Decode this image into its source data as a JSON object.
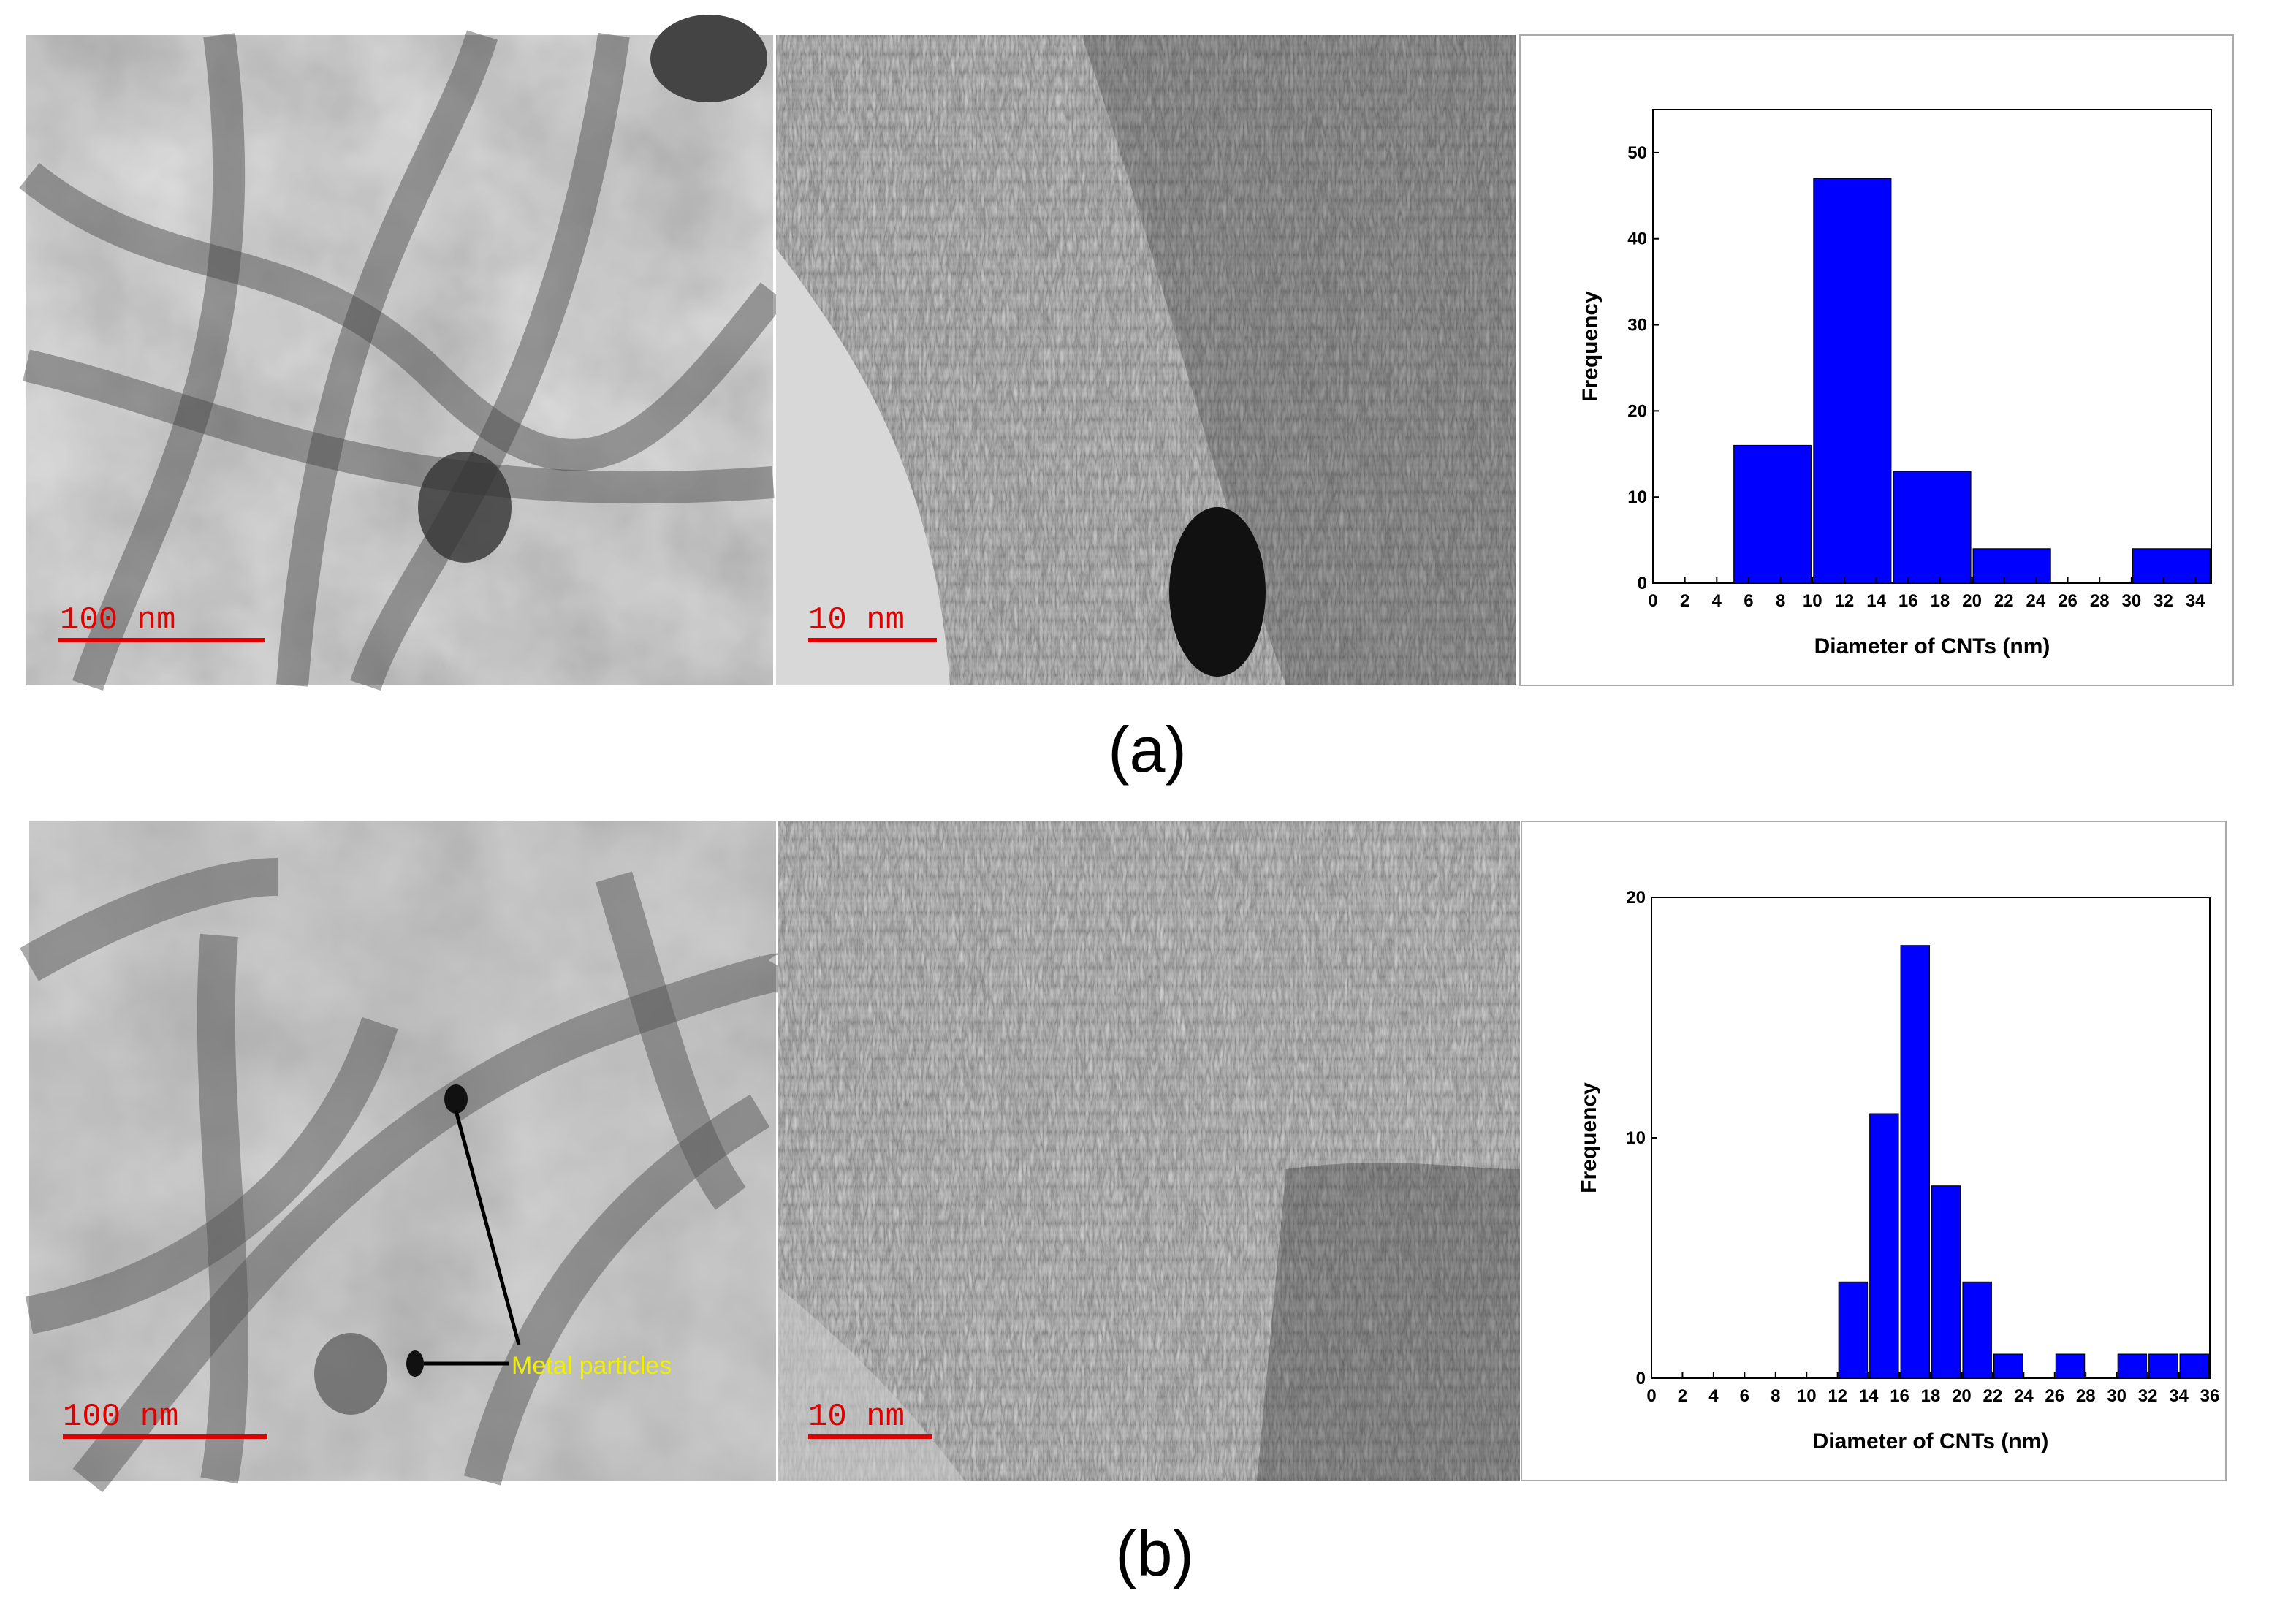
{
  "figure": {
    "panels": [
      {
        "label": "(a)",
        "scale_bars": [
          "100 nm",
          "10 nm"
        ]
      },
      {
        "label": "(b)",
        "scale_bars": [
          "100 nm",
          "10 nm"
        ],
        "annotation": "Metal particles"
      }
    ]
  },
  "chart_data": [
    {
      "type": "histogram",
      "xlabel": "Diameter of CNTs (nm)",
      "ylabel": "Frequency",
      "bins": [
        5,
        10,
        15,
        20,
        25,
        30,
        35
      ],
      "values": [
        16,
        47,
        13,
        4,
        0,
        4
      ],
      "color": "#0000ff",
      "xlim": [
        0,
        35
      ],
      "ylim": [
        0,
        55
      ],
      "xticks": [
        0,
        2,
        4,
        6,
        8,
        10,
        12,
        14,
        16,
        18,
        20,
        22,
        24,
        26,
        28,
        30,
        32,
        34
      ],
      "yticks": [
        0,
        10,
        20,
        30,
        40,
        50
      ]
    },
    {
      "type": "histogram",
      "xlabel": "Diameter of CNTs (nm)",
      "ylabel": "Frequency",
      "bins": [
        12,
        14,
        16,
        18,
        20,
        22,
        24,
        26,
        28,
        30,
        32,
        34,
        36
      ],
      "values": [
        4,
        11,
        18,
        8,
        4,
        1,
        0,
        1,
        0,
        1,
        1,
        1
      ],
      "color": "#0000ff",
      "xlim": [
        0,
        36
      ],
      "ylim": [
        0,
        20
      ],
      "xticks": [
        0,
        2,
        4,
        6,
        8,
        10,
        12,
        14,
        16,
        18,
        20,
        22,
        24,
        26,
        28,
        30,
        32,
        34,
        36
      ],
      "yticks": [
        0,
        10,
        20
      ]
    }
  ]
}
